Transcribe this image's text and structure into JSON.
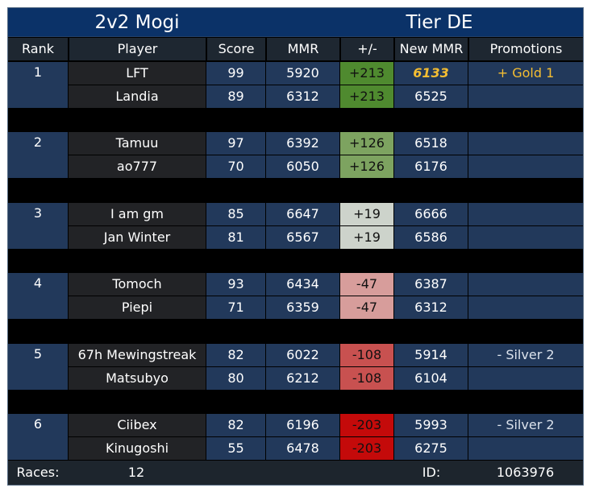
{
  "title": {
    "left": "2v2 Mogi",
    "right": "Tier DE"
  },
  "columns": [
    "Rank",
    "Player",
    "Score",
    "MMR",
    "+/-",
    "New MMR",
    "Promotions"
  ],
  "teams": [
    {
      "rank": "1",
      "diff": "+213",
      "diff_color": "#4f8a2f",
      "players": [
        {
          "name": "LFT",
          "score": "99",
          "mmr": "5920",
          "new_mmr": "6133",
          "highlight": true,
          "promotion": "+ Gold 1",
          "promo_type": "up"
        },
        {
          "name": "Landia",
          "score": "89",
          "mmr": "6312",
          "new_mmr": "6525",
          "highlight": false,
          "promotion": "",
          "promo_type": ""
        }
      ]
    },
    {
      "rank": "2",
      "diff": "+126",
      "diff_color": "#7da360",
      "players": [
        {
          "name": "Tamuu",
          "score": "97",
          "mmr": "6392",
          "new_mmr": "6518",
          "highlight": false,
          "promotion": "",
          "promo_type": ""
        },
        {
          "name": "ao777",
          "score": "70",
          "mmr": "6050",
          "new_mmr": "6176",
          "highlight": false,
          "promotion": "",
          "promo_type": ""
        }
      ]
    },
    {
      "rank": "3",
      "diff": "+19",
      "diff_color": "#cdd3cb",
      "players": [
        {
          "name": "I am gm",
          "score": "85",
          "mmr": "6647",
          "new_mmr": "6666",
          "highlight": false,
          "promotion": "",
          "promo_type": ""
        },
        {
          "name": "Jan Winter",
          "score": "81",
          "mmr": "6567",
          "new_mmr": "6586",
          "highlight": false,
          "promotion": "",
          "promo_type": ""
        }
      ]
    },
    {
      "rank": "4",
      "diff": "-47",
      "diff_color": "#d79d9b",
      "players": [
        {
          "name": "Tomoch",
          "score": "93",
          "mmr": "6434",
          "new_mmr": "6387",
          "highlight": false,
          "promotion": "",
          "promo_type": ""
        },
        {
          "name": "Piepi",
          "score": "71",
          "mmr": "6359",
          "new_mmr": "6312",
          "highlight": false,
          "promotion": "",
          "promo_type": ""
        }
      ]
    },
    {
      "rank": "5",
      "diff": "-108",
      "diff_color": "#c85150",
      "players": [
        {
          "name": "67h Mewingstreak",
          "score": "82",
          "mmr": "6022",
          "new_mmr": "5914",
          "highlight": false,
          "promotion": "- Silver 2",
          "promo_type": "down"
        },
        {
          "name": "Matsubyo",
          "score": "80",
          "mmr": "6212",
          "new_mmr": "6104",
          "highlight": false,
          "promotion": "",
          "promo_type": ""
        }
      ]
    },
    {
      "rank": "6",
      "diff": "-203",
      "diff_color": "#c40a0a",
      "players": [
        {
          "name": "Ciibex",
          "score": "82",
          "mmr": "6196",
          "new_mmr": "5993",
          "highlight": false,
          "promotion": "- Silver 2",
          "promo_type": "down"
        },
        {
          "name": "Kinugoshi",
          "score": "55",
          "mmr": "6478",
          "new_mmr": "6275",
          "highlight": false,
          "promotion": "",
          "promo_type": ""
        }
      ]
    }
  ],
  "footer": {
    "races_label": "Races:",
    "races_value": "12",
    "id_label": "ID:",
    "id_value": "1063976"
  }
}
